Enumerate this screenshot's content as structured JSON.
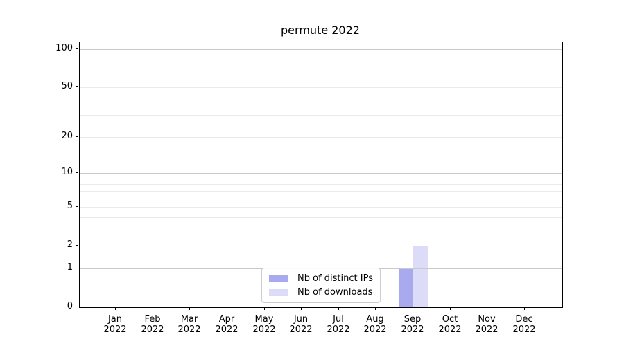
{
  "title": "permute 2022",
  "legend": {
    "items": [
      {
        "label": "Nb of distinct IPs",
        "color": "#a9a9f0"
      },
      {
        "label": "Nb of downloads",
        "color": "#dcdcf8"
      }
    ]
  },
  "chart_data": {
    "type": "bar",
    "title": "permute 2022",
    "categories": [
      "Jan 2022",
      "Feb 2022",
      "Mar 2022",
      "Apr 2022",
      "May 2022",
      "Jun 2022",
      "Jul 2022",
      "Aug 2022",
      "Sep 2022",
      "Oct 2022",
      "Nov 2022",
      "Dec 2022"
    ],
    "series": [
      {
        "name": "Nb of distinct IPs",
        "color": "#a9a9f0",
        "values": [
          0,
          0,
          0,
          0,
          0,
          0,
          0,
          0,
          1,
          0,
          0,
          0
        ]
      },
      {
        "name": "Nb of downloads",
        "color": "#dcdcf8",
        "values": [
          0,
          0,
          0,
          0,
          0,
          0,
          0,
          0,
          2,
          0,
          0,
          0
        ]
      }
    ],
    "xlabel": "",
    "ylabel": "",
    "yscale": "log1p",
    "ylim": [
      0,
      113.3
    ],
    "y_ticks": [
      0,
      1,
      2,
      5,
      10,
      20,
      50,
      100
    ],
    "grid_major": [
      1,
      10,
      100
    ],
    "grid_minor": [
      2,
      3,
      4,
      5,
      6,
      7,
      8,
      9,
      20,
      30,
      40,
      50,
      60,
      70,
      80,
      90,
      110
    ],
    "grid": "on",
    "legend_position": "lower center"
  }
}
